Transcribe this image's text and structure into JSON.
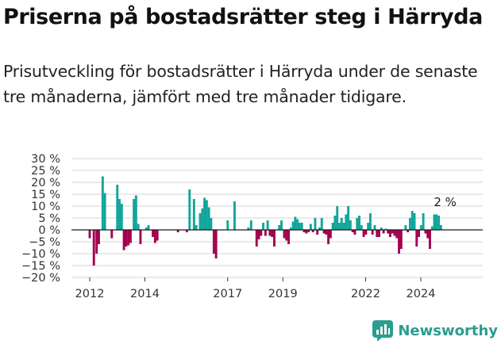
{
  "header": {
    "title": "Priserna på bostadsrätter steg i Härryda",
    "subtitle": "Prisutveckling för bostadsrätter i Härryda under de senaste tre månaderna, jämfört med tre månader tidigare."
  },
  "brand": {
    "name": "Newsworthy"
  },
  "colors": {
    "positive": "#12a59b",
    "negative": "#a3004e",
    "brand": "#2a9d8f"
  },
  "chart_data": {
    "type": "bar",
    "title": "",
    "xlabel": "",
    "ylabel": "",
    "ylim": [
      -20,
      30
    ],
    "y_ticks": [
      30,
      25,
      20,
      15,
      10,
      5,
      0,
      -5,
      -10,
      -15,
      -20
    ],
    "y_tick_labels": [
      "30 %",
      "25 %",
      "20 %",
      "15 %",
      "10 %",
      "5 %",
      "0 %",
      "−5 %",
      "−10 %",
      "−15 %",
      "−20 %"
    ],
    "x_tick_labels": [
      "2012",
      "2014",
      "2017",
      "2019",
      "2022",
      "2024"
    ],
    "x_tick_values": [
      2012.0,
      2014.0,
      2017.0,
      2019.0,
      2022.0,
      2024.0
    ],
    "grid": true,
    "annotation": {
      "label": "2 %",
      "x": 2024.7,
      "y": 2
    },
    "bars": [
      {
        "x": 2012.0,
        "y": -3.5
      },
      {
        "x": 2012.15,
        "y": -15.0
      },
      {
        "x": 2012.25,
        "y": -10.0
      },
      {
        "x": 2012.33,
        "y": -6.0
      },
      {
        "x": 2012.47,
        "y": 22.5
      },
      {
        "x": 2012.55,
        "y": 15.5
      },
      {
        "x": 2012.8,
        "y": -3.5
      },
      {
        "x": 2013.0,
        "y": 19.0
      },
      {
        "x": 2013.08,
        "y": 13.0
      },
      {
        "x": 2013.16,
        "y": 11.0
      },
      {
        "x": 2013.24,
        "y": -8.5
      },
      {
        "x": 2013.32,
        "y": -7.0
      },
      {
        "x": 2013.4,
        "y": -6.5
      },
      {
        "x": 2013.48,
        "y": -5.5
      },
      {
        "x": 2013.6,
        "y": 13.0
      },
      {
        "x": 2013.68,
        "y": 14.5
      },
      {
        "x": 2013.76,
        "y": 2.5
      },
      {
        "x": 2013.84,
        "y": -6.0
      },
      {
        "x": 2014.05,
        "y": 1.0
      },
      {
        "x": 2014.13,
        "y": 2.0
      },
      {
        "x": 2014.29,
        "y": -3.0
      },
      {
        "x": 2014.37,
        "y": -5.5
      },
      {
        "x": 2014.45,
        "y": -4.5
      },
      {
        "x": 2015.2,
        "y": -1.0
      },
      {
        "x": 2015.52,
        "y": -1.0
      },
      {
        "x": 2015.62,
        "y": 17.0
      },
      {
        "x": 2015.78,
        "y": 13.0
      },
      {
        "x": 2015.86,
        "y": 2.0
      },
      {
        "x": 2016.0,
        "y": 7.0
      },
      {
        "x": 2016.08,
        "y": 9.0
      },
      {
        "x": 2016.16,
        "y": 13.5
      },
      {
        "x": 2016.24,
        "y": 12.5
      },
      {
        "x": 2016.32,
        "y": 9.5
      },
      {
        "x": 2016.4,
        "y": 5.0
      },
      {
        "x": 2016.5,
        "y": -10.0
      },
      {
        "x": 2016.58,
        "y": -12.0
      },
      {
        "x": 2017.0,
        "y": 4.0
      },
      {
        "x": 2017.25,
        "y": 12.0
      },
      {
        "x": 2017.75,
        "y": 1.0
      },
      {
        "x": 2017.85,
        "y": 4.0
      },
      {
        "x": 2018.05,
        "y": -7.0
      },
      {
        "x": 2018.13,
        "y": -4.0
      },
      {
        "x": 2018.21,
        "y": -2.5
      },
      {
        "x": 2018.29,
        "y": 3.0
      },
      {
        "x": 2018.37,
        "y": -2.5
      },
      {
        "x": 2018.45,
        "y": 4.0
      },
      {
        "x": 2018.53,
        "y": -2.5
      },
      {
        "x": 2018.61,
        "y": -3.0
      },
      {
        "x": 2018.69,
        "y": -7.0
      },
      {
        "x": 2018.87,
        "y": 2.0
      },
      {
        "x": 2018.95,
        "y": 4.0
      },
      {
        "x": 2019.05,
        "y": -3.5
      },
      {
        "x": 2019.13,
        "y": -4.5
      },
      {
        "x": 2019.21,
        "y": -6.0
      },
      {
        "x": 2019.29,
        "y": 1.0
      },
      {
        "x": 2019.37,
        "y": 3.5
      },
      {
        "x": 2019.45,
        "y": 5.5
      },
      {
        "x": 2019.53,
        "y": 4.5
      },
      {
        "x": 2019.61,
        "y": 3.0
      },
      {
        "x": 2019.69,
        "y": 3.0
      },
      {
        "x": 2019.77,
        "y": -1.0
      },
      {
        "x": 2019.85,
        "y": -1.5
      },
      {
        "x": 2019.93,
        "y": -1.0
      },
      {
        "x": 2020.01,
        "y": 2.5
      },
      {
        "x": 2020.09,
        "y": -1.0
      },
      {
        "x": 2020.17,
        "y": 5.0
      },
      {
        "x": 2020.25,
        "y": -2.0
      },
      {
        "x": 2020.33,
        "y": 1.0
      },
      {
        "x": 2020.41,
        "y": 5.0
      },
      {
        "x": 2020.49,
        "y": -1.5
      },
      {
        "x": 2020.57,
        "y": -2.0
      },
      {
        "x": 2020.65,
        "y": -6.0
      },
      {
        "x": 2020.73,
        "y": -3.5
      },
      {
        "x": 2020.81,
        "y": 3.0
      },
      {
        "x": 2020.89,
        "y": 6.0
      },
      {
        "x": 2020.97,
        "y": 10.0
      },
      {
        "x": 2021.05,
        "y": 3.0
      },
      {
        "x": 2021.13,
        "y": 5.0
      },
      {
        "x": 2021.21,
        "y": 3.0
      },
      {
        "x": 2021.29,
        "y": 6.5
      },
      {
        "x": 2021.37,
        "y": 10.0
      },
      {
        "x": 2021.45,
        "y": 4.0
      },
      {
        "x": 2021.53,
        "y": -1.0
      },
      {
        "x": 2021.61,
        "y": -2.0
      },
      {
        "x": 2021.69,
        "y": 5.0
      },
      {
        "x": 2021.77,
        "y": 6.0
      },
      {
        "x": 2021.85,
        "y": 2.0
      },
      {
        "x": 2021.93,
        "y": -3.0
      },
      {
        "x": 2022.01,
        "y": -2.0
      },
      {
        "x": 2022.09,
        "y": 3.0
      },
      {
        "x": 2022.17,
        "y": 7.0
      },
      {
        "x": 2022.25,
        "y": -2.0
      },
      {
        "x": 2022.33,
        "y": 2.0
      },
      {
        "x": 2022.41,
        "y": -3.0
      },
      {
        "x": 2022.49,
        "y": -3.0
      },
      {
        "x": 2022.57,
        "y": 1.0
      },
      {
        "x": 2022.65,
        "y": -1.5
      },
      {
        "x": 2022.73,
        "y": 0.5
      },
      {
        "x": 2022.81,
        "y": -1.5
      },
      {
        "x": 2022.89,
        "y": -3.0
      },
      {
        "x": 2022.97,
        "y": -1.5
      },
      {
        "x": 2023.05,
        "y": -2.5
      },
      {
        "x": 2023.13,
        "y": -3.5
      },
      {
        "x": 2023.21,
        "y": -10.0
      },
      {
        "x": 2023.29,
        "y": -8.0
      },
      {
        "x": 2023.45,
        "y": 2.0
      },
      {
        "x": 2023.53,
        "y": -1.0
      },
      {
        "x": 2023.61,
        "y": 5.0
      },
      {
        "x": 2023.69,
        "y": 8.0
      },
      {
        "x": 2023.77,
        "y": 7.0
      },
      {
        "x": 2023.85,
        "y": -7.0
      },
      {
        "x": 2023.93,
        "y": -3.0
      },
      {
        "x": 2024.01,
        "y": 2.0
      },
      {
        "x": 2024.09,
        "y": 7.0
      },
      {
        "x": 2024.17,
        "y": -1.5
      },
      {
        "x": 2024.25,
        "y": -3.5
      },
      {
        "x": 2024.33,
        "y": -8.0
      },
      {
        "x": 2024.41,
        "y": 1.5
      },
      {
        "x": 2024.49,
        "y": 6.5
      },
      {
        "x": 2024.57,
        "y": 6.5
      },
      {
        "x": 2024.65,
        "y": 6.0
      },
      {
        "x": 2024.73,
        "y": 2.0
      }
    ]
  }
}
